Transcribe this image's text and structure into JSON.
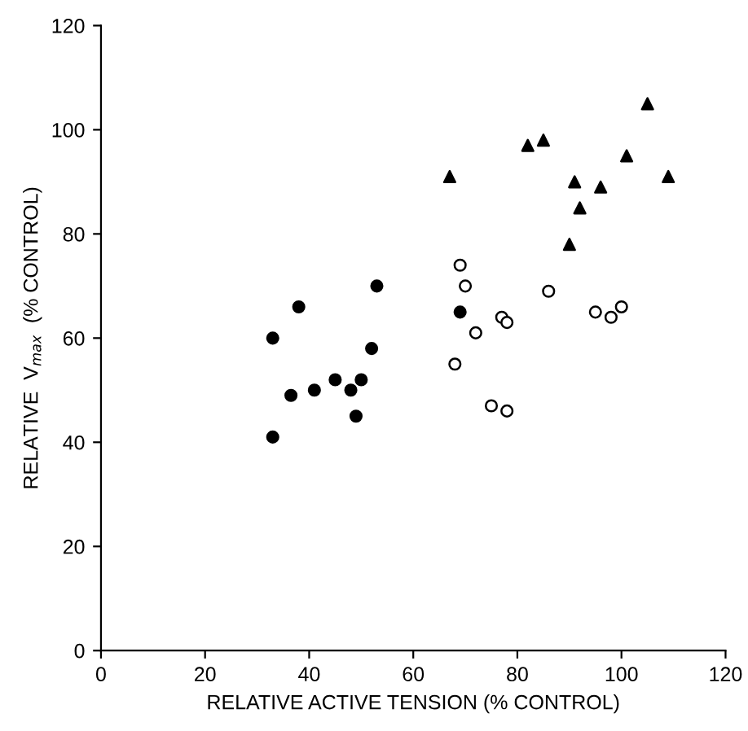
{
  "chart_data": {
    "type": "scatter",
    "xlabel": "RELATIVE ACTIVE TENSION (% CONTROL)",
    "ylabel": "RELATIVE  V$_{max}$  (% CONTROL)",
    "xlim": [
      0,
      120
    ],
    "ylim": [
      0,
      120
    ],
    "xticks": [
      0,
      20,
      40,
      60,
      80,
      100,
      120
    ],
    "yticks": [
      0,
      20,
      40,
      60,
      80,
      100,
      120
    ],
    "grid": false,
    "series": [
      {
        "color": "#000000",
        "marker": "circle",
        "x": [
          33,
          33,
          36.5,
          38,
          41,
          45,
          48,
          49,
          50,
          52,
          53,
          69
        ],
        "values": [
          60,
          41,
          49,
          66,
          50,
          52,
          50,
          45,
          52,
          58,
          70,
          65
        ]
      },
      {
        "color": "#ffffff",
        "marker": "circle",
        "x": [
          68,
          69,
          70,
          72,
          75,
          77,
          78,
          78,
          86,
          95,
          98,
          100
        ],
        "values": [
          55,
          74,
          70,
          61,
          47,
          64,
          63,
          46,
          69,
          65,
          64,
          66
        ]
      },
      {
        "color": "#000000",
        "marker": "triangle",
        "x": [
          67,
          82,
          85,
          90,
          91,
          92,
          96,
          101,
          105,
          109
        ],
        "values": [
          91,
          97,
          98,
          78,
          90,
          85,
          89,
          95,
          105,
          91
        ]
      }
    ]
  }
}
